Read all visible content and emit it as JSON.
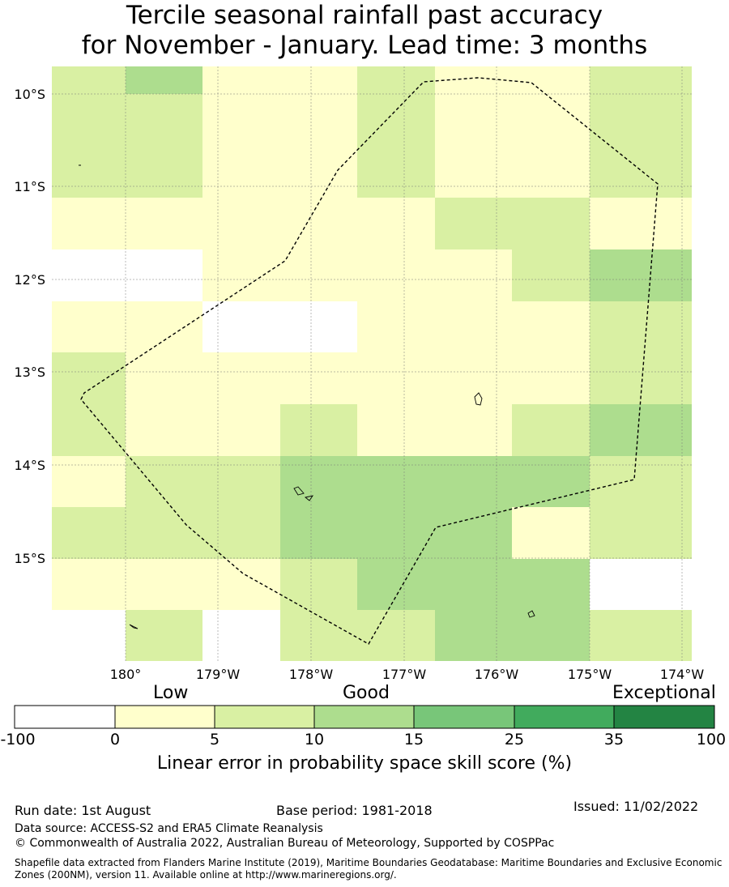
{
  "title": {
    "line1": "Tercile seasonal rainfall past accuracy",
    "line2": "for November - January. Lead time: 3 months"
  },
  "map": {
    "lat_labels": [
      "10°S",
      "11°S",
      "12°S",
      "13°S",
      "14°S",
      "15°S"
    ],
    "lon_labels": [
      "180°",
      "179°W",
      "178°W",
      "177°W",
      "176°W",
      "175°W",
      "174°W"
    ],
    "lon_range": [
      179.2,
      186.1
    ],
    "lat_range": [
      -16.0,
      -9.7
    ],
    "grid_cell_colors": [
      [
        "#ffffcc",
        "#ffffcc",
        "#ffffcc",
        "#ffffcc",
        "#ffffcc",
        "#d9f0a3",
        "#d9f0a3",
        "#ffffcc",
        "#d9f0a3",
        "#d9f0a3"
      ],
      [
        "#ffffcc",
        "#ffffcc",
        "#ffffcc",
        "#d9f0a3",
        "#d9f0a3",
        "#d9f0a3",
        "#d9f0a3",
        "#ffffcc",
        "#d9f0a3",
        "#d9f0a3"
      ]
    ],
    "eez_outline": "dashed black"
  },
  "colorbar": {
    "category_labels": [
      "Low",
      "Good",
      "Exceptional"
    ],
    "ticks": [
      "-100",
      "0",
      "5",
      "10",
      "15",
      "25",
      "35",
      "100"
    ],
    "colors": [
      "#ffffff",
      "#ffffcc",
      "#d9f0a3",
      "#addd8e",
      "#78c679",
      "#41ab5d",
      "#238443"
    ],
    "caption": "Linear error in probability space skill score (%)"
  },
  "footer": {
    "run_date": "Run date: 1st August",
    "base_period": "Base period: 1981-2018",
    "issued": "Issued: 11/02/2022",
    "data_source": "Data source: ACCESS-S2 and ERA5 Climate Reanalysis",
    "copyright": "© Commonwealth of Australia 2022, Australian Bureau of Meteorology, Supported by COSPPac",
    "shapefile_line1": "Shapefile data extracted from Flanders Marine Institute (2019), Maritime Boundaries Geodatabase: Maritime Boundaries and Exclusive Economic",
    "shapefile_line2": "Zones (200NM), version 11. Available online at http://www.marineregions.org/."
  }
}
